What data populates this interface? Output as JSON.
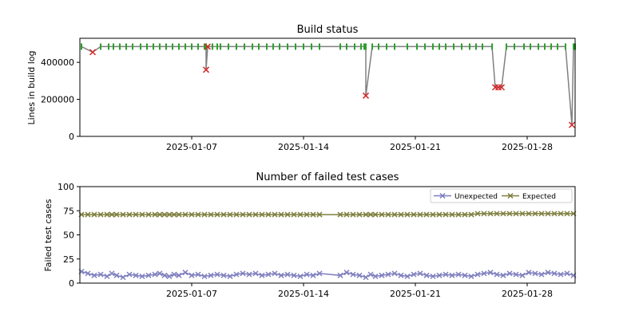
{
  "chart_data": [
    {
      "type": "line",
      "title": "Build status",
      "xlabel": "",
      "ylabel": "Lines in build log",
      "x_tick_labels": [
        "2025-01-07",
        "2025-01-14",
        "2025-01-21",
        "2025-01-28"
      ],
      "x_tick_days": [
        7,
        14,
        21,
        28
      ],
      "y_ticks": [
        0,
        200000,
        400000
      ],
      "y_tick_labels": [
        "0",
        "200000",
        "400000"
      ],
      "xlim_days": [
        0,
        31
      ],
      "ylim": [
        0,
        530000
      ],
      "colors": {
        "line": "#808080",
        "success": "#2ca02c",
        "failure": "#d62728"
      },
      "points": [
        [
          0.1,
          485000,
          "ok"
        ],
        [
          0.8,
          455000,
          "fail"
        ],
        [
          1.3,
          485000,
          "ok"
        ],
        [
          1.8,
          485000,
          "ok"
        ],
        [
          2.1,
          485000,
          "ok"
        ],
        [
          2.5,
          485000,
          "ok"
        ],
        [
          2.9,
          485000,
          "ok"
        ],
        [
          3.3,
          485000,
          "ok"
        ],
        [
          3.8,
          485000,
          "ok"
        ],
        [
          4.2,
          485000,
          "ok"
        ],
        [
          4.6,
          485000,
          "ok"
        ],
        [
          5.0,
          485000,
          "ok"
        ],
        [
          5.4,
          485000,
          "ok"
        ],
        [
          5.8,
          485000,
          "ok"
        ],
        [
          6.2,
          485000,
          "ok"
        ],
        [
          6.6,
          485000,
          "ok"
        ],
        [
          7.0,
          485000,
          "ok"
        ],
        [
          7.4,
          485000,
          "ok"
        ],
        [
          7.9,
          485000,
          "ok"
        ],
        [
          8.3,
          485000,
          "ok"
        ],
        [
          8.6,
          485000,
          "ok"
        ],
        [
          7.8,
          485000,
          "ok"
        ],
        [
          7.9,
          360000,
          "fail"
        ],
        [
          8.0,
          485000,
          "fail"
        ],
        [
          8.8,
          485000,
          "ok"
        ],
        [
          9.3,
          485000,
          "ok"
        ],
        [
          9.8,
          485000,
          "ok"
        ],
        [
          10.3,
          485000,
          "ok"
        ],
        [
          10.8,
          485000,
          "ok"
        ],
        [
          11.2,
          485000,
          "ok"
        ],
        [
          11.7,
          485000,
          "ok"
        ],
        [
          12.1,
          485000,
          "ok"
        ],
        [
          12.5,
          485000,
          "ok"
        ],
        [
          13.0,
          485000,
          "ok"
        ],
        [
          13.5,
          485000,
          "ok"
        ],
        [
          14.0,
          485000,
          "ok"
        ],
        [
          14.5,
          485000,
          "ok"
        ],
        [
          15.0,
          485000,
          "ok"
        ],
        [
          16.3,
          485000,
          "ok"
        ],
        [
          16.7,
          485000,
          "ok"
        ],
        [
          17.2,
          485000,
          "ok"
        ],
        [
          17.6,
          485000,
          "ok"
        ],
        [
          17.9,
          485000,
          "ok"
        ],
        [
          17.8,
          485000,
          "ok"
        ],
        [
          17.9,
          220000,
          "fail"
        ],
        [
          18.3,
          485000,
          "ok"
        ],
        [
          18.7,
          485000,
          "ok"
        ],
        [
          19.2,
          485000,
          "ok"
        ],
        [
          19.7,
          485000,
          "ok"
        ],
        [
          20.5,
          485000,
          "ok"
        ],
        [
          21.1,
          485000,
          "ok"
        ],
        [
          21.6,
          485000,
          "ok"
        ],
        [
          22.1,
          485000,
          "ok"
        ],
        [
          22.5,
          485000,
          "ok"
        ],
        [
          22.9,
          485000,
          "ok"
        ],
        [
          23.4,
          485000,
          "ok"
        ],
        [
          23.9,
          485000,
          "ok"
        ],
        [
          24.4,
          485000,
          "ok"
        ],
        [
          24.8,
          485000,
          "ok"
        ],
        [
          25.2,
          485000,
          "ok"
        ],
        [
          25.8,
          485000,
          "ok"
        ],
        [
          26.0,
          265000,
          "fail"
        ],
        [
          26.2,
          265000,
          "fail"
        ],
        [
          26.4,
          265000,
          "fail"
        ],
        [
          26.7,
          485000,
          "ok"
        ],
        [
          27.2,
          485000,
          "ok"
        ],
        [
          27.8,
          485000,
          "ok"
        ],
        [
          28.2,
          485000,
          "ok"
        ],
        [
          28.7,
          485000,
          "ok"
        ],
        [
          29.1,
          485000,
          "ok"
        ],
        [
          29.5,
          485000,
          "ok"
        ],
        [
          29.9,
          485000,
          "ok"
        ],
        [
          30.4,
          485000,
          "ok"
        ],
        [
          30.8,
          62000,
          "fail"
        ],
        [
          30.9,
          485000,
          "ok"
        ],
        [
          31.0,
          485000,
          "ok"
        ]
      ]
    },
    {
      "type": "line",
      "title": "Number of failed test cases",
      "xlabel": "",
      "ylabel": "Failed test cases",
      "x_tick_labels": [
        "2025-01-07",
        "2025-01-14",
        "2025-01-21",
        "2025-01-28"
      ],
      "x_tick_days": [
        7,
        14,
        21,
        28
      ],
      "y_ticks": [
        0,
        25,
        50,
        75,
        100
      ],
      "y_tick_labels": [
        "0",
        "25",
        "50",
        "75",
        "100"
      ],
      "xlim_days": [
        0,
        31
      ],
      "ylim": [
        0,
        100
      ],
      "legend": "top-right",
      "series": [
        {
          "name": "Unexpected",
          "color": "#7f7fbf",
          "x": [
            0.1,
            0.5,
            0.9,
            1.3,
            1.7,
            2.0,
            2.3,
            2.7,
            3.1,
            3.5,
            3.9,
            4.3,
            4.7,
            5.0,
            5.3,
            5.6,
            5.9,
            6.2,
            6.6,
            7.0,
            7.4,
            7.8,
            8.2,
            8.6,
            9.0,
            9.4,
            9.8,
            10.2,
            10.6,
            11.0,
            11.4,
            11.8,
            12.2,
            12.6,
            13.0,
            13.4,
            13.8,
            14.2,
            14.6,
            15.0,
            16.3,
            16.7,
            17.1,
            17.5,
            17.9,
            18.2,
            18.5,
            18.9,
            19.3,
            19.7,
            20.1,
            20.5,
            20.9,
            21.3,
            21.7,
            22.1,
            22.5,
            22.9,
            23.3,
            23.7,
            24.1,
            24.5,
            24.9,
            25.3,
            25.7,
            26.1,
            26.5,
            26.9,
            27.3,
            27.7,
            28.1,
            28.5,
            28.9,
            29.3,
            29.7,
            30.1,
            30.5,
            30.9
          ],
          "values": [
            12,
            10,
            8,
            9,
            7,
            10,
            8,
            6,
            9,
            8,
            7,
            8,
            9,
            10,
            8,
            7,
            9,
            8,
            11,
            8,
            9,
            7,
            8,
            9,
            8,
            7,
            9,
            10,
            9,
            10,
            8,
            9,
            10,
            8,
            9,
            8,
            7,
            9,
            8,
            10,
            8,
            11,
            9,
            8,
            6,
            9,
            7,
            8,
            9,
            10,
            8,
            7,
            9,
            10,
            8,
            7,
            8,
            9,
            8,
            9,
            8,
            7,
            9,
            10,
            11,
            9,
            8,
            10,
            9,
            8,
            11,
            10,
            9,
            11,
            10,
            9,
            10,
            8
          ]
        },
        {
          "name": "Expected",
          "color": "#7f7f3f",
          "x": [
            0.1,
            0.5,
            0.9,
            1.3,
            1.7,
            2.0,
            2.3,
            2.7,
            3.1,
            3.5,
            3.9,
            4.3,
            4.7,
            5.0,
            5.3,
            5.6,
            5.9,
            6.2,
            6.6,
            7.0,
            7.4,
            7.8,
            8.2,
            8.6,
            9.0,
            9.4,
            9.8,
            10.2,
            10.6,
            11.0,
            11.4,
            11.8,
            12.2,
            12.6,
            13.0,
            13.4,
            13.8,
            14.2,
            14.6,
            15.0,
            16.3,
            16.7,
            17.1,
            17.5,
            17.9,
            18.2,
            18.5,
            18.9,
            19.3,
            19.7,
            20.1,
            20.5,
            20.9,
            21.3,
            21.7,
            22.1,
            22.5,
            22.9,
            23.3,
            23.7,
            24.1,
            24.5,
            24.9,
            25.3,
            25.7,
            26.1,
            26.5,
            26.9,
            27.3,
            27.7,
            28.1,
            28.5,
            28.9,
            29.3,
            29.7,
            30.1,
            30.5,
            30.9
          ],
          "values": [
            71,
            71,
            71,
            71,
            71,
            71,
            71,
            71,
            71,
            71,
            71,
            71,
            71,
            71,
            71,
            71,
            71,
            71,
            71,
            71,
            71,
            71,
            71,
            71,
            71,
            71,
            71,
            71,
            71,
            71,
            71,
            71,
            71,
            71,
            71,
            71,
            71,
            71,
            71,
            71,
            71,
            71,
            71,
            71,
            71,
            71,
            71,
            71,
            71,
            71,
            71,
            71,
            71,
            71,
            71,
            71,
            71,
            71,
            71,
            71,
            71,
            71,
            72,
            72,
            72,
            72,
            72,
            72,
            72,
            72,
            72,
            72,
            72,
            72,
            72,
            72,
            72,
            72
          ]
        }
      ]
    }
  ]
}
